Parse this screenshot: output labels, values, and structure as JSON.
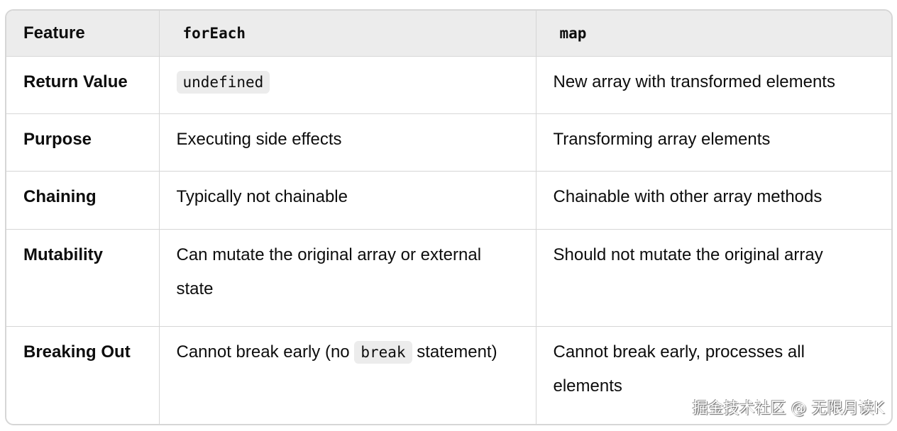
{
  "headers": [
    [
      {
        "t": "Feature"
      }
    ],
    [
      {
        "t": "forEach",
        "code": true
      }
    ],
    [
      {
        "t": "map",
        "code": true
      }
    ]
  ],
  "rows": [
    [
      [
        {
          "t": "Return Value"
        }
      ],
      [
        {
          "t": "undefined",
          "code": true
        }
      ],
      [
        {
          "t": "New array with transformed elements"
        }
      ]
    ],
    [
      [
        {
          "t": "Purpose"
        }
      ],
      [
        {
          "t": "Executing side effects"
        }
      ],
      [
        {
          "t": "Transforming array elements"
        }
      ]
    ],
    [
      [
        {
          "t": "Chaining"
        }
      ],
      [
        {
          "t": "Typically not chainable"
        }
      ],
      [
        {
          "t": "Chainable with other array methods"
        }
      ]
    ],
    [
      [
        {
          "t": "Mutability"
        }
      ],
      [
        {
          "t": "Can mutate the original array or external state"
        }
      ],
      [
        {
          "t": "Should not mutate the original array"
        }
      ]
    ],
    [
      [
        {
          "t": "Breaking Out"
        }
      ],
      [
        {
          "t": "Cannot break early (no "
        },
        {
          "t": "break",
          "code": true
        },
        {
          "t": " statement)"
        }
      ],
      [
        {
          "t": "Cannot break early, processes all elements"
        }
      ]
    ]
  ],
  "watermark": "掘金技术社区 @ 无限月读K"
}
